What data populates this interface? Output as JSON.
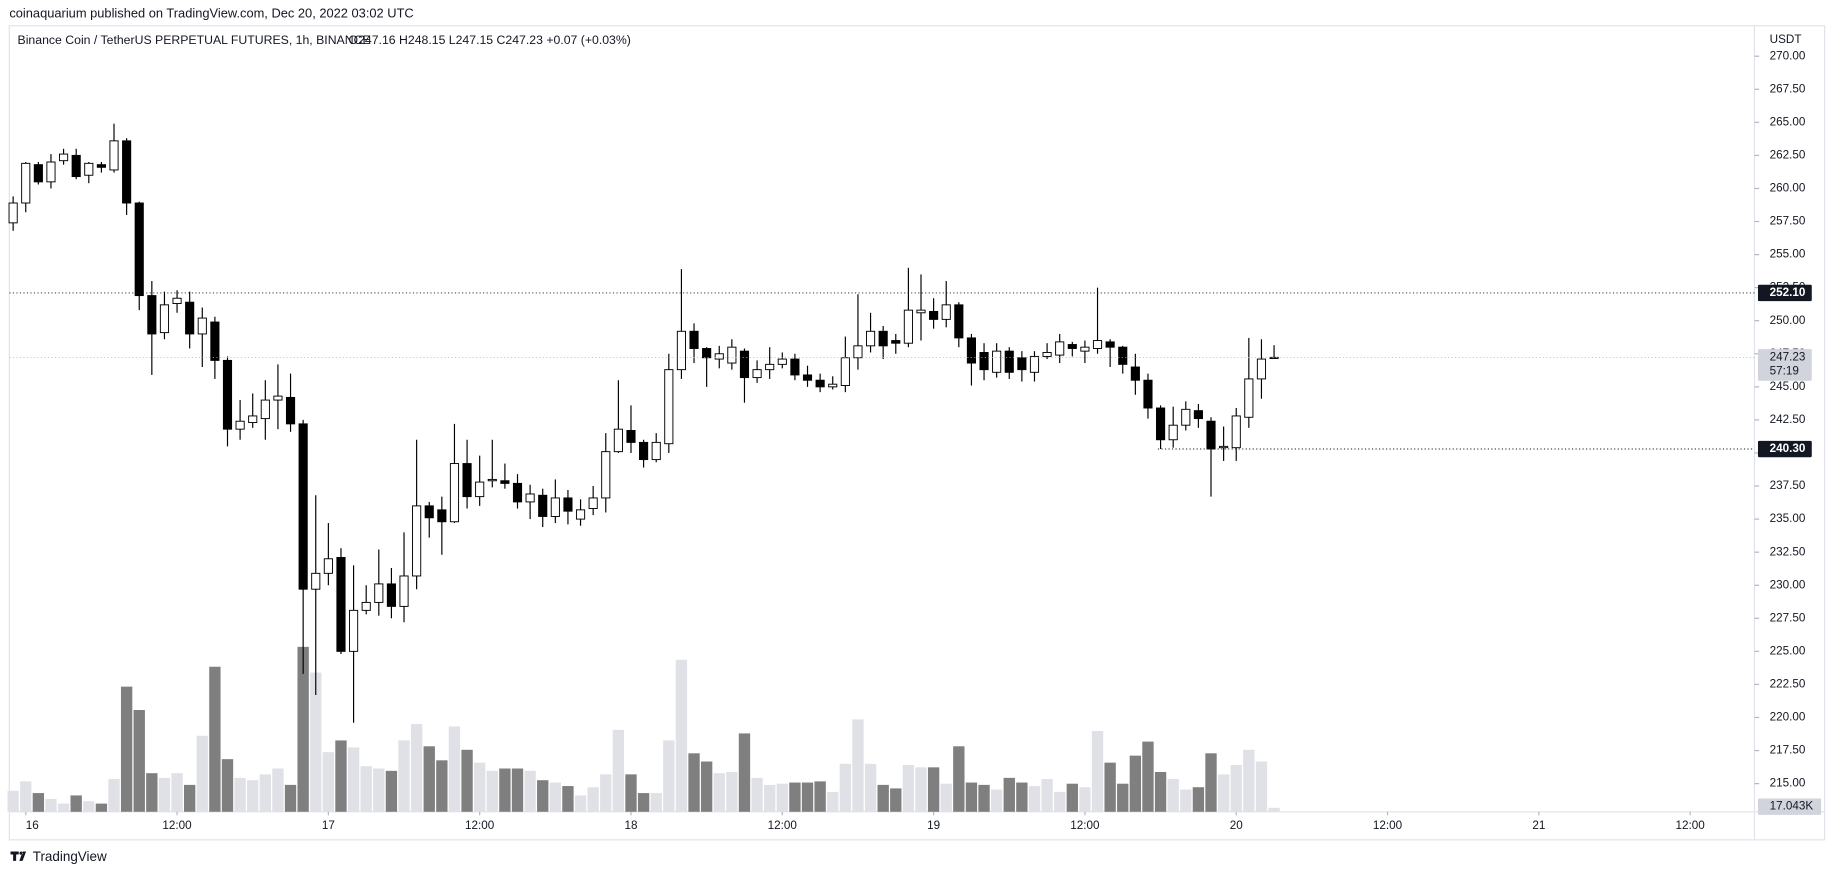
{
  "header": {
    "published": "coinaquarium published on TradingView.com, Dec 20, 2022 03:02 UTC"
  },
  "footer": {
    "brand": "TradingView"
  },
  "chart_data": {
    "type": "candlestick",
    "title": "Binance Coin / TetherUS PERPETUAL FUTURES, 1h, BINANCE",
    "legend_values": "O247.16 H248.15 L247.15 C247.23 +0.07 (+0.03%)",
    "currency": "USDT",
    "up_color": "#ffffff",
    "down_color": "#000000",
    "wick_color": "#000000",
    "volume_up_color": "#e0e1e6",
    "volume_down_color": "#7f7f7f",
    "open": [
      257.4,
      258.9,
      261.8,
      260.5,
      262.1,
      262.5,
      261,
      261.8,
      261.4,
      263.6,
      258.9,
      251.9,
      249.1,
      251.3,
      251.4,
      249,
      249.9,
      247,
      241.8,
      242.3,
      242.6,
      244,
      244.2,
      242.2,
      229.7,
      230.9,
      232.1,
      225,
      228.1,
      228.7,
      230.1,
      228.4,
      230.7,
      236,
      235.7,
      234.8,
      239.2,
      236.7,
      237.9,
      237.9,
      237.7,
      236.3,
      236.8,
      235.2,
      236.6,
      235,
      235.8,
      236.6,
      240.1,
      241.7,
      240.8,
      239.5,
      240.7,
      246.3,
      249.2,
      247.9,
      247.1,
      246.8,
      247.7,
      245.7,
      246.3,
      246.7,
      247.1,
      245.9,
      245.5,
      245,
      245.1,
      247.2,
      248.1,
      249.2,
      248.5,
      248.3,
      250.6,
      250.7,
      250.1,
      251.2,
      248.7,
      247.6,
      246.1,
      247.7,
      247.2,
      246.1,
      247.3,
      247.4,
      248.2,
      247.7,
      247.9,
      248.4,
      248,
      246.5,
      245.5,
      243.4,
      241,
      242.1,
      243.2,
      242.4,
      240.4,
      240.4,
      242.7,
      245.6,
      247.16
    ],
    "high": [
      259.4,
      262,
      262,
      262.6,
      263,
      263,
      262,
      262,
      264.9,
      263.8,
      259,
      253,
      252.2,
      252.3,
      252.2,
      251,
      250.3,
      247.3,
      244,
      244.5,
      245.5,
      246.7,
      246,
      242.5,
      236.8,
      234.7,
      232.8,
      231.5,
      230,
      232.7,
      231.3,
      234,
      241,
      236.3,
      236.7,
      242.2,
      241,
      239.8,
      241,
      239.2,
      238.4,
      237.6,
      237.3,
      238,
      237.2,
      236.5,
      237.5,
      241.5,
      245.5,
      243.6,
      241,
      241.5,
      247.5,
      253.9,
      249.8,
      248,
      248.1,
      248.6,
      247.9,
      247,
      248,
      247.6,
      247.5,
      246.6,
      246,
      245.8,
      248.8,
      252,
      250.6,
      249.6,
      249,
      254,
      253.5,
      251.7,
      253,
      251.4,
      249,
      248.3,
      248.3,
      248,
      247.7,
      247.7,
      248.3,
      249,
      248.4,
      248.5,
      252.5,
      248.6,
      248.1,
      247.5,
      246,
      243.6,
      243.5,
      243.9,
      243.7,
      242.7,
      242,
      243.4,
      248.7,
      248.6,
      248.15
    ],
    "low": [
      256.8,
      258.2,
      260.3,
      260,
      261.8,
      260.7,
      260.4,
      261.2,
      261.2,
      258,
      250.8,
      245.9,
      248.6,
      250.6,
      247.9,
      246.5,
      245.6,
      240.5,
      241,
      241.9,
      241,
      241.8,
      241.6,
      223.3,
      221.7,
      230,
      224.8,
      219.6,
      227.8,
      227.7,
      227.5,
      227.2,
      229.7,
      233.6,
      232.3,
      234.7,
      235.8,
      236,
      237.4,
      237.3,
      235.8,
      235,
      234.4,
      234.7,
      234.6,
      234.5,
      235.3,
      235.5,
      240,
      240,
      238.9,
      239.3,
      240,
      245.6,
      246.8,
      245,
      246.4,
      246.3,
      243.8,
      245.3,
      245.6,
      246.4,
      245.5,
      245,
      244.6,
      244.8,
      244.6,
      246.3,
      247.6,
      247.1,
      247.5,
      248,
      248.5,
      249.4,
      249.5,
      248,
      245.1,
      245.5,
      245.7,
      245.6,
      245.4,
      245.4,
      247.1,
      246.8,
      247.3,
      246.8,
      247.5,
      246.5,
      246,
      244.4,
      242.6,
      240.3,
      240.4,
      241.7,
      241.9,
      236.7,
      239.4,
      239.4,
      241.9,
      244.1,
      247.15
    ],
    "close": [
      258.9,
      261.9,
      260.5,
      262,
      262.6,
      260.9,
      261.9,
      261.6,
      263.6,
      258.9,
      251.9,
      249,
      251.2,
      251.7,
      249,
      250.2,
      247,
      241.8,
      242.4,
      242.8,
      244,
      244.3,
      242.2,
      229.7,
      230.9,
      232,
      225,
      228.1,
      228.7,
      230.1,
      228.4,
      230.7,
      236,
      235.1,
      234.8,
      239.2,
      236.7,
      237.8,
      238,
      237.7,
      236.3,
      236.9,
      235.2,
      236.6,
      235.6,
      235.7,
      236.6,
      240.1,
      241.8,
      240.8,
      239.5,
      240.8,
      246.3,
      249.2,
      247.9,
      247.2,
      247.5,
      248,
      245.7,
      246.3,
      246.7,
      247.1,
      245.9,
      245.5,
      245,
      245.2,
      247.2,
      248.1,
      249.2,
      248.1,
      248.3,
      250.8,
      250.8,
      250.1,
      251.2,
      248.7,
      246.8,
      246.3,
      247.7,
      246.1,
      246.3,
      247.3,
      247.6,
      248.4,
      247.9,
      248,
      248.5,
      248,
      246.7,
      245.5,
      243.4,
      241,
      242.1,
      243.3,
      242.6,
      240.3,
      240.5,
      242.8,
      245.6,
      247.1,
      247.23
    ],
    "volume": [
      90000,
      130000,
      80000,
      55000,
      35000,
      70000,
      45000,
      35000,
      140000,
      535000,
      435000,
      165000,
      145000,
      165000,
      115000,
      325000,
      620000,
      225000,
      145000,
      135000,
      160000,
      185000,
      115000,
      705000,
      595000,
      255000,
      305000,
      275000,
      195000,
      185000,
      175000,
      305000,
      375000,
      280000,
      220000,
      365000,
      265000,
      210000,
      175000,
      185000,
      185000,
      175000,
      135000,
      125000,
      110000,
      70000,
      105000,
      160000,
      350000,
      160000,
      80000,
      80000,
      305000,
      650000,
      250000,
      215000,
      165000,
      170000,
      335000,
      145000,
      115000,
      120000,
      125000,
      125000,
      130000,
      85000,
      205000,
      395000,
      205000,
      115000,
      100000,
      200000,
      190000,
      190000,
      120000,
      280000,
      125000,
      115000,
      95000,
      145000,
      125000,
      110000,
      140000,
      85000,
      120000,
      105000,
      345000,
      210000,
      120000,
      240000,
      300000,
      170000,
      140000,
      95000,
      105000,
      250000,
      160000,
      200000,
      265000,
      215000,
      17043
    ],
    "volume_label": "17.043K",
    "vlim": [
      0,
      800000
    ],
    "xlim": [
      -0.3,
      138.1
    ],
    "xticks": [
      {
        "value": 1,
        "label": "16"
      },
      {
        "value": 13,
        "label": "12:00"
      },
      {
        "value": 25,
        "label": "17"
      },
      {
        "value": 37,
        "label": "12:00"
      },
      {
        "value": 49,
        "label": "18"
      },
      {
        "value": 61,
        "label": "12:00"
      },
      {
        "value": 73,
        "label": "19"
      },
      {
        "value": 85,
        "label": "12:00"
      },
      {
        "value": 97,
        "label": "20"
      },
      {
        "value": 109,
        "label": "12:00"
      },
      {
        "value": 121,
        "label": "21"
      },
      {
        "value": 133,
        "label": "12:00"
      }
    ],
    "ylim": [
      212.87,
      272.3
    ],
    "yticks": [
      {
        "value": 215,
        "label": "215.00"
      },
      {
        "value": 217.5,
        "label": "217.50"
      },
      {
        "value": 220,
        "label": "220.00"
      },
      {
        "value": 222.5,
        "label": "222.50"
      },
      {
        "value": 225,
        "label": "225.00"
      },
      {
        "value": 227.5,
        "label": "227.50"
      },
      {
        "value": 230,
        "label": "230.00"
      },
      {
        "value": 232.5,
        "label": "232.50"
      },
      {
        "value": 235,
        "label": "235.00"
      },
      {
        "value": 237.5,
        "label": "237.50"
      },
      {
        "value": 240,
        "label": "240.00"
      },
      {
        "value": 242.5,
        "label": "242.50"
      },
      {
        "value": 245,
        "label": "245.00"
      },
      {
        "value": 247.5,
        "label": "247.50"
      },
      {
        "value": 250,
        "label": "250.00"
      },
      {
        "value": 252.5,
        "label": "252.50"
      },
      {
        "value": 255,
        "label": "255.00"
      },
      {
        "value": 257.5,
        "label": "257.50"
      },
      {
        "value": 260,
        "label": "260.00"
      },
      {
        "value": 262.5,
        "label": "262.50"
      },
      {
        "value": 265,
        "label": "265.00"
      },
      {
        "value": 267.5,
        "label": "267.50"
      },
      {
        "value": 270,
        "label": "270.00"
      }
    ],
    "price_lines": [
      {
        "value": 252.1,
        "label": "252.10"
      },
      {
        "value": 240.3,
        "label": "240.30"
      }
    ],
    "last_price": {
      "value": 247.23,
      "label": "247.23"
    },
    "countdown": "57:19"
  }
}
